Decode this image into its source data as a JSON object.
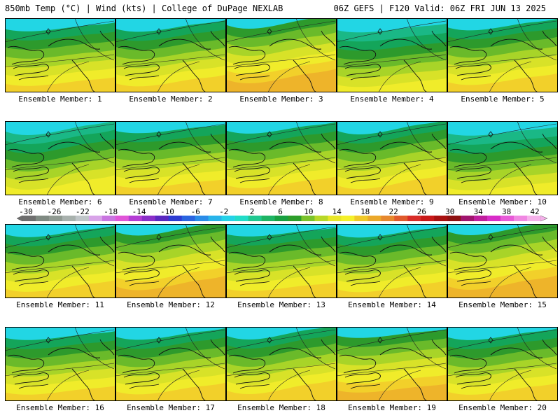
{
  "header": {
    "left": "850mb Temp (°C) | Wind (kts) | College of DuPage NEXLAB",
    "right": "06Z GEFS | F120 Valid: 06Z FRI JUN 13 2025"
  },
  "members": [
    {
      "label": "Ensemble Member: 1",
      "warmth": 0.45
    },
    {
      "label": "Ensemble Member: 2",
      "warmth": 0.4
    },
    {
      "label": "Ensemble Member: 3",
      "warmth": 0.85
    },
    {
      "label": "Ensemble Member: 4",
      "warmth": 0.3
    },
    {
      "label": "Ensemble Member: 5",
      "warmth": 0.6
    },
    {
      "label": "Ensemble Member: 6",
      "warmth": 0.35
    },
    {
      "label": "Ensemble Member: 7",
      "warmth": 0.6
    },
    {
      "label": "Ensemble Member: 8",
      "warmth": 0.55
    },
    {
      "label": "Ensemble Member: 9",
      "warmth": 0.45
    },
    {
      "label": "Ensemble Member: 10",
      "warmth": 0.25
    },
    {
      "label": "Ensemble Member: 11",
      "warmth": 0.45
    },
    {
      "label": "Ensemble Member: 12",
      "warmth": 0.7
    },
    {
      "label": "Ensemble Member: 13",
      "warmth": 0.55
    },
    {
      "label": "Ensemble Member: 14",
      "warmth": 0.4
    },
    {
      "label": "Ensemble Member: 15",
      "warmth": 0.75
    },
    {
      "label": "Ensemble Member: 16",
      "warmth": 0.45
    },
    {
      "label": "Ensemble Member: 17",
      "warmth": 0.5
    },
    {
      "label": "Ensemble Member: 18",
      "warmth": 0.55
    },
    {
      "label": "Ensemble Member: 19",
      "warmth": 0.75
    },
    {
      "label": "Ensemble Member: 20",
      "warmth": 0.45
    }
  ],
  "colorbar": {
    "labels": [
      "-30",
      "-26",
      "-22",
      "-18",
      "-14",
      "-10",
      "-6",
      "-2",
      "2",
      "6",
      "10",
      "14",
      "18",
      "22",
      "26",
      "30",
      "34",
      "38",
      "42"
    ],
    "colors": [
      "#6e6e6e",
      "#7f8a82",
      "#909a92",
      "#a8b1ad",
      "#bfc5c8",
      "#d8a3e8",
      "#c975e0",
      "#e055d8",
      "#b43cd4",
      "#8a2ec8",
      "#5a28c0",
      "#2d3cd2",
      "#2a64e0",
      "#2a8ce8",
      "#28b4ea",
      "#25d2e8",
      "#22dcc8",
      "#20c890",
      "#1eb464",
      "#18a040",
      "#2d9e2a",
      "#7ac22a",
      "#b8d828",
      "#e8e628",
      "#f5f02a",
      "#f0c828",
      "#eba82a",
      "#e6882e",
      "#e05a2c",
      "#d82c28",
      "#c81818",
      "#a81010",
      "#8e1010",
      "#a0146e",
      "#c01e9e",
      "#d82cc8",
      "#e85ad8",
      "#f088e2",
      "#f5b0ea"
    ],
    "tick_colors": [
      "#1a1a1a",
      "#2a2a2a",
      "#3a3a3a",
      "#666666",
      "#d8d8d8",
      "#d0d0d0",
      "#d0d0d0",
      "#d0d0d0",
      "#d0d0d0",
      "#d0d0d0",
      "#111111",
      "#111111",
      "#111111",
      "#111111",
      "#111111",
      "#111111",
      "#111111",
      "#111111",
      "#111111"
    ]
  }
}
